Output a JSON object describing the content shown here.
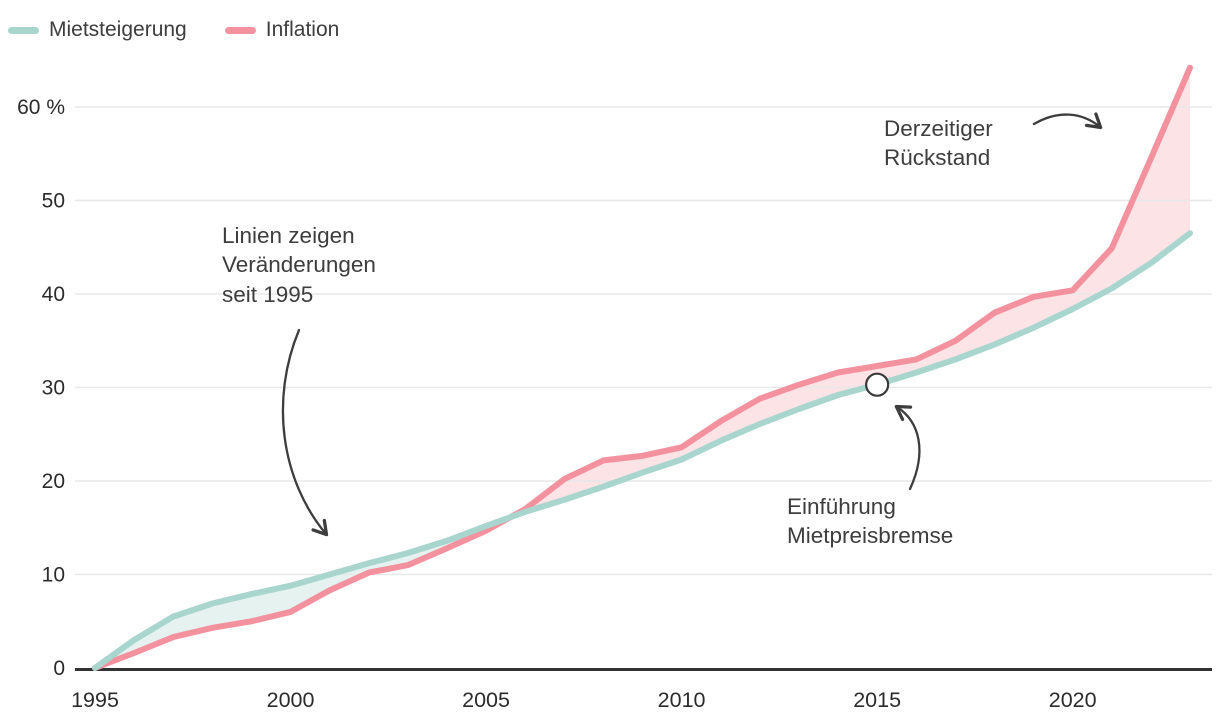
{
  "legend": {
    "items": [
      {
        "label": "Mietsteigerung",
        "color": "#a8d5cd"
      },
      {
        "label": "Inflation",
        "color": "#f3929e"
      }
    ]
  },
  "annotations": {
    "lines_note": "Linien zeigen\nVeränderungen\nseit 1995",
    "mietpreisbremse_note": "Einführung\nMietpreisbremse",
    "rueckstand_note": "Derzeitiger\nRückstand"
  },
  "colors": {
    "grid": "#e8e8e8",
    "axis": "#333333",
    "tick_text": "#2b2b2b",
    "annotation": "#3d3d3d",
    "marker_stroke": "#3a3a3a",
    "background": "#ffffff"
  },
  "chart_data": {
    "type": "area",
    "title": "",
    "subtitle": "",
    "xlabel": "",
    "ylabel": "%",
    "x_range_years": [
      1995,
      2023
    ],
    "ylim": [
      0,
      65
    ],
    "grid": "horizontal",
    "legend_position": "top-left",
    "x": [
      1995,
      1996,
      1997,
      1998,
      1999,
      2000,
      2001,
      2002,
      2003,
      2004,
      2005,
      2006,
      2007,
      2008,
      2009,
      2010,
      2011,
      2012,
      2013,
      2014,
      2015,
      2016,
      2017,
      2018,
      2019,
      2020,
      2021,
      2022,
      2023
    ],
    "series": [
      {
        "name": "Mietsteigerung",
        "color": "#a8d5cd",
        "fill": "rgba(168,213,205,0.30)",
        "values": [
          0,
          3.0,
          5.5,
          6.9,
          7.9,
          8.8,
          10.0,
          11.2,
          12.3,
          13.6,
          15.2,
          16.7,
          18.0,
          19.4,
          20.9,
          22.3,
          24.3,
          26.1,
          27.7,
          29.2,
          30.3,
          31.6,
          33.0,
          34.6,
          36.4,
          38.4,
          40.6,
          43.3,
          46.5
        ]
      },
      {
        "name": "Inflation",
        "color": "#f3929e",
        "fill": "rgba(243,146,158,0.26)",
        "values": [
          0,
          1.6,
          3.3,
          4.3,
          5.0,
          6.0,
          8.3,
          10.2,
          11.0,
          12.8,
          14.7,
          17.0,
          20.2,
          22.2,
          22.7,
          23.6,
          26.4,
          28.8,
          30.3,
          31.6,
          32.3,
          33.0,
          35.0,
          38.0,
          39.7,
          40.4,
          44.9,
          54.5,
          64.2
        ]
      }
    ],
    "yticks": [
      "0",
      "10",
      "20",
      "30",
      "40",
      "50",
      "60 %"
    ],
    "xticks": [
      1995,
      2000,
      2005,
      2010,
      2015,
      2020
    ],
    "marker": {
      "year": 2015,
      "value": 30.3,
      "series": "Mietsteigerung",
      "label": "Einführung Mietpreisbremse"
    }
  }
}
